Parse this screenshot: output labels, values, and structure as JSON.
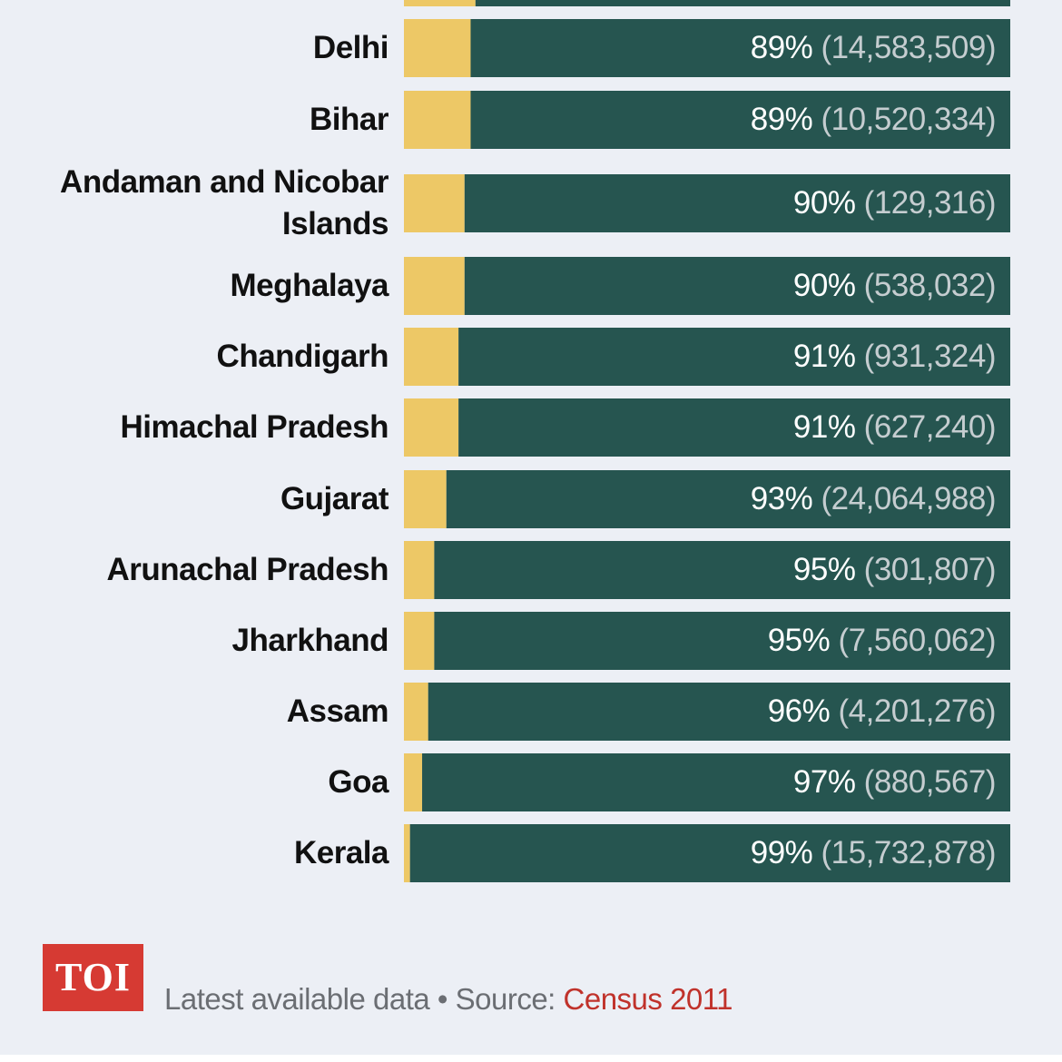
{
  "chart_data": {
    "type": "bar",
    "orientation": "horizontal-stacked-100",
    "colors": {
      "primary": "#265550",
      "remainder": "#edc866",
      "background": "#eceff5"
    },
    "categories": [
      "(cut-off row)",
      "Delhi",
      "Bihar",
      "Andaman and Nicobar Islands",
      "Meghalaya",
      "Chandigarh",
      "Himachal Pradesh",
      "Gujarat",
      "Arunachal Pradesh",
      "Jharkhand",
      "Assam",
      "Goa",
      "Kerala"
    ],
    "rows": [
      {
        "name": "",
        "percent": 88.2,
        "pct_label": "",
        "count_label": "",
        "label_lines": [],
        "partial": true
      },
      {
        "name": "Delhi",
        "percent": 89,
        "pct_label": "89%",
        "count_label": "(14,583,509)",
        "label_lines": [
          "Delhi"
        ]
      },
      {
        "name": "Bihar",
        "percent": 89,
        "pct_label": "89%",
        "count_label": "(10,520,334)",
        "label_lines": [
          "Bihar"
        ]
      },
      {
        "name": "Andaman and Nicobar Islands",
        "percent": 90,
        "pct_label": "90%",
        "count_label": "(129,316)",
        "label_lines": [
          "Andaman and Nicobar",
          "Islands"
        ]
      },
      {
        "name": "Meghalaya",
        "percent": 90,
        "pct_label": "90%",
        "count_label": "(538,032)",
        "label_lines": [
          "Meghalaya"
        ]
      },
      {
        "name": "Chandigarh",
        "percent": 91,
        "pct_label": "91%",
        "count_label": "(931,324)",
        "label_lines": [
          "Chandigarh"
        ]
      },
      {
        "name": "Himachal Pradesh",
        "percent": 91,
        "pct_label": "91%",
        "count_label": "(627,240)",
        "label_lines": [
          "Himachal Pradesh"
        ]
      },
      {
        "name": "Gujarat",
        "percent": 93,
        "pct_label": "93%",
        "count_label": "(24,064,988)",
        "label_lines": [
          "Gujarat"
        ]
      },
      {
        "name": "Arunachal Pradesh",
        "percent": 95,
        "pct_label": "95%",
        "count_label": "(301,807)",
        "label_lines": [
          "Arunachal Pradesh"
        ]
      },
      {
        "name": "Jharkhand",
        "percent": 95,
        "pct_label": "95%",
        "count_label": "(7,560,062)",
        "label_lines": [
          "Jharkhand"
        ]
      },
      {
        "name": "Assam",
        "percent": 96,
        "pct_label": "96%",
        "count_label": "(4,201,276)",
        "label_lines": [
          "Assam"
        ]
      },
      {
        "name": "Goa",
        "percent": 97,
        "pct_label": "97%",
        "count_label": "(880,567)",
        "label_lines": [
          "Goa"
        ]
      },
      {
        "name": "Kerala",
        "percent": 99,
        "pct_label": "99%",
        "count_label": "(15,732,878)",
        "label_lines": [
          "Kerala"
        ]
      }
    ],
    "xlim": [
      0,
      100
    ]
  },
  "footer": {
    "logo_text": "TOI",
    "source_prefix": "Latest available data • Source: ",
    "source_name": "Census 2011"
  }
}
